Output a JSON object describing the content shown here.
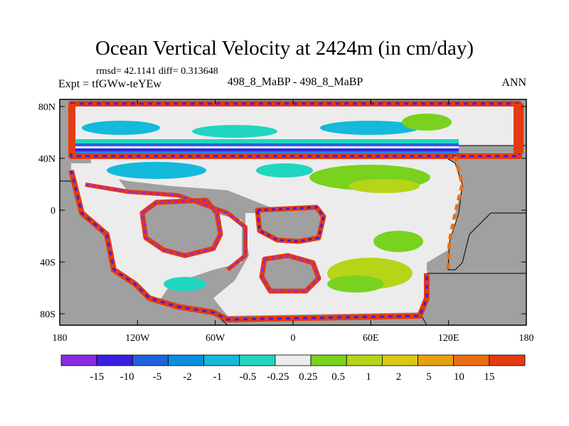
{
  "title": "Ocean Vertical Velocity at 2424m (in cm/day)",
  "stats": "rmsd= 42.1141 diff= 0.313648",
  "experiment": "Expt = tfGWw-teYEw",
  "subtitle": "498_8_MaBP - 498_8_MaBP",
  "season": "ANN",
  "map": {
    "lon_ticks": [
      "180",
      "120W",
      "60W",
      "0",
      "60E",
      "120E",
      "180"
    ],
    "lat_ticks": [
      "80N",
      "40N",
      "0",
      "40S",
      "80S"
    ],
    "land_color": "#a0a0a0"
  },
  "colorbar": {
    "colors": [
      "#8a2be2",
      "#3b1fe0",
      "#1f63e0",
      "#0a8fe0",
      "#14b9dc",
      "#20d6c0",
      "#ececec",
      "#78d21e",
      "#b6d418",
      "#d9c812",
      "#e6a010",
      "#ec6e12",
      "#e63a10"
    ],
    "labels": [
      "-15",
      "-10",
      "-5",
      "-2",
      "-1",
      "-0.5",
      "-0.25",
      "0.25",
      "0.5",
      "1",
      "2",
      "5",
      "10",
      "15"
    ]
  }
}
